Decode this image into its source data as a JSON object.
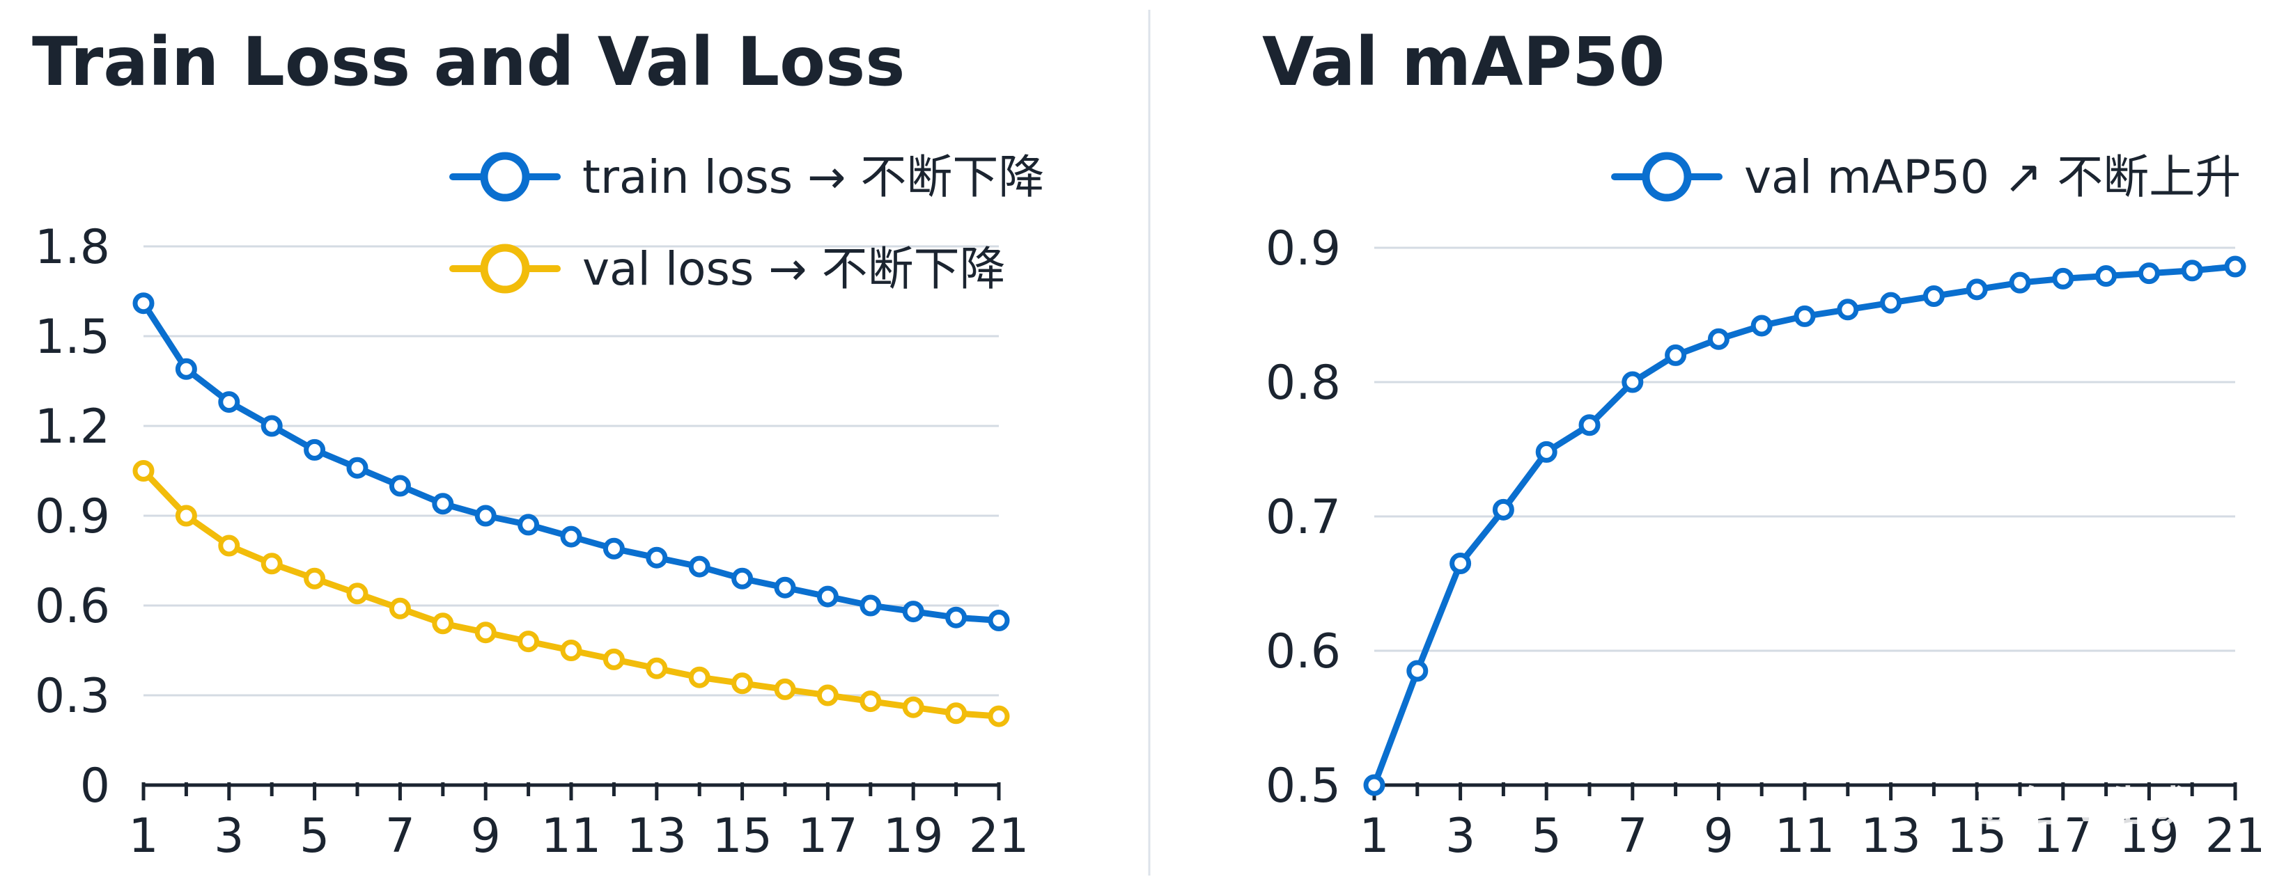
{
  "colors": {
    "blue": "#0a6fcf",
    "yellow": "#f2bc0a",
    "text": "#1b2430",
    "grid": "#d4dbe3"
  },
  "watermark": "豆包AI生成",
  "chart_data": [
    {
      "type": "line",
      "title": "Train Loss and Val Loss",
      "x": [
        1,
        2,
        3,
        4,
        5,
        6,
        7,
        8,
        9,
        10,
        11,
        12,
        13,
        14,
        15,
        16,
        17,
        18,
        19,
        20,
        21
      ],
      "x_tick_labels": [
        "1",
        "3",
        "5",
        "7",
        "9",
        "11",
        "13",
        "15",
        "17",
        "19",
        "21"
      ],
      "y_tick_labels": [
        "0",
        "0.3",
        "0.6",
        "0.9",
        "1.2",
        "1.5",
        "1.8"
      ],
      "ylim": [
        0,
        1.8
      ],
      "grid": true,
      "legend_position": "top-right",
      "series": [
        {
          "name": "train loss → 不断下降",
          "color": "#0a6fcf",
          "values": [
            1.61,
            1.39,
            1.28,
            1.2,
            1.12,
            1.06,
            1.0,
            0.94,
            0.9,
            0.87,
            0.83,
            0.79,
            0.76,
            0.73,
            0.69,
            0.66,
            0.63,
            0.6,
            0.58,
            0.56,
            0.55
          ]
        },
        {
          "name": "val loss → 不断下降",
          "color": "#f2bc0a",
          "values": [
            1.05,
            0.9,
            0.8,
            0.74,
            0.69,
            0.64,
            0.59,
            0.54,
            0.51,
            0.48,
            0.45,
            0.42,
            0.39,
            0.36,
            0.34,
            0.32,
            0.3,
            0.28,
            0.26,
            0.24,
            0.23
          ]
        }
      ]
    },
    {
      "type": "line",
      "title": "Val mAP50",
      "x": [
        1,
        2,
        3,
        4,
        5,
        6,
        7,
        8,
        9,
        10,
        11,
        12,
        13,
        14,
        15,
        16,
        17,
        18,
        19,
        20,
        21
      ],
      "x_tick_labels": [
        "1",
        "3",
        "5",
        "7",
        "9",
        "11",
        "13",
        "15",
        "17",
        "19",
        "21"
      ],
      "y_tick_labels": [
        "0.5",
        "0.6",
        "0.7",
        "0.8",
        "0.9"
      ],
      "ylim": [
        0.5,
        0.9
      ],
      "grid": true,
      "legend_position": "top-right",
      "series": [
        {
          "name": "val mAP50 ↗ 不断上升",
          "color": "#0a6fcf",
          "values": [
            0.5,
            0.585,
            0.665,
            0.705,
            0.748,
            0.768,
            0.8,
            0.82,
            0.832,
            0.842,
            0.849,
            0.854,
            0.859,
            0.864,
            0.869,
            0.874,
            0.877,
            0.879,
            0.881,
            0.883,
            0.886
          ]
        }
      ]
    }
  ]
}
